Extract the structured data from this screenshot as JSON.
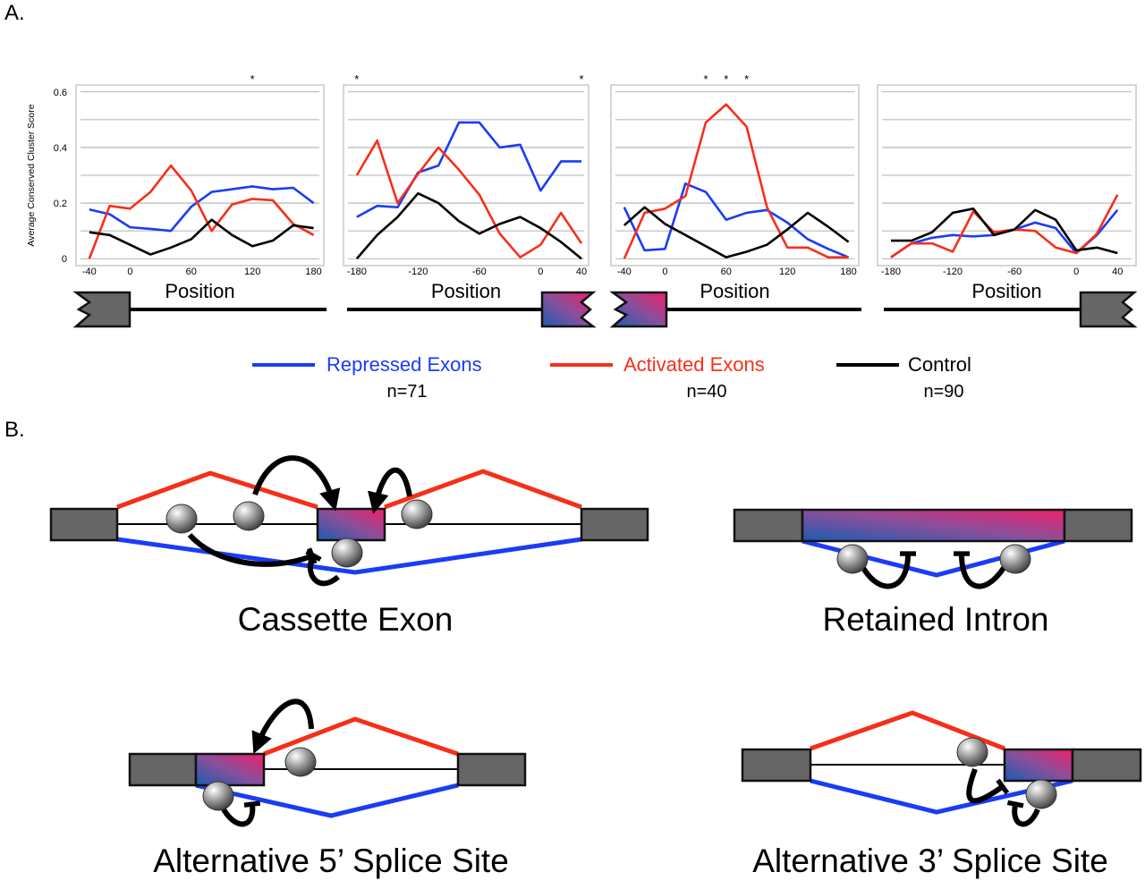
{
  "panel_labels": [
    "A.",
    "B."
  ],
  "chart_data": [
    {
      "type": "line",
      "x_label": "Position",
      "y_label": "Average Conserved Cluster Score",
      "x": [
        -40,
        -20,
        0,
        20,
        40,
        60,
        80,
        100,
        120,
        140,
        160,
        180
      ],
      "xlim": [
        -53,
        190
      ],
      "xticks": [
        -40,
        0,
        60,
        120,
        180
      ],
      "ylim": [
        -0.025,
        0.625
      ],
      "yticks": [
        0,
        {
          "value": 0.1,
          "label": null
        },
        0.2,
        {
          "value": 0.3,
          "label": null
        },
        0.4,
        {
          "value": 0.5,
          "label": null
        },
        0.6
      ],
      "ytick_labels": true,
      "grid": true,
      "annotations": [
        {
          "x": 120,
          "text": "*"
        }
      ],
      "series": [
        {
          "name": "Repressed Exons",
          "color": "#1a3cf5",
          "values": [
            0.177,
            0.16,
            0.113,
            0.107,
            0.1,
            0.187,
            0.24,
            0.25,
            0.26,
            0.25,
            0.255,
            0.2
          ]
        },
        {
          "name": "Activated Exons",
          "color": "#f5301a",
          "values": [
            0,
            0.19,
            0.18,
            0.24,
            0.335,
            0.245,
            0.1,
            0.195,
            0.215,
            0.21,
            0.125,
            0.085
          ]
        },
        {
          "name": "Control",
          "color": "#000000",
          "values": [
            0.095,
            0.085,
            0.05,
            0.015,
            0.04,
            0.07,
            0.14,
            0.085,
            0.045,
            0.065,
            0.12,
            0.11
          ]
        }
      ]
    },
    {
      "type": "line",
      "x_label": "Position",
      "x": [
        -180,
        -160,
        -140,
        -120,
        -100,
        -80,
        -60,
        -40,
        -20,
        0,
        20,
        40
      ],
      "xlim": [
        -193,
        47
      ],
      "xticks": [
        -180,
        -120,
        -60,
        0,
        40
      ],
      "ylim": [
        -0.025,
        0.625
      ],
      "yticks": [
        0,
        0.1,
        0.2,
        0.3,
        0.4,
        0.5,
        0.6
      ],
      "ytick_labels": false,
      "grid": true,
      "annotations": [
        {
          "x": -180,
          "text": "*"
        },
        {
          "x": 40,
          "text": "*"
        }
      ],
      "series": [
        {
          "color": "#1a3cf5",
          "values": [
            0.15,
            0.19,
            0.185,
            0.31,
            0.335,
            0.49,
            0.49,
            0.4,
            0.41,
            0.245,
            0.35,
            0.35
          ]
        },
        {
          "color": "#f5301a",
          "values": [
            0.3,
            0.425,
            0.2,
            0.305,
            0.4,
            0.32,
            0.23,
            0.09,
            0.005,
            0.05,
            0.165,
            0.055
          ]
        },
        {
          "color": "#000000",
          "values": [
            0,
            0.085,
            0.15,
            0.235,
            0.2,
            0.135,
            0.09,
            0.125,
            0.15,
            0.11,
            0.06,
            0
          ]
        }
      ]
    },
    {
      "type": "line",
      "x_label": "Position",
      "x": [
        -40,
        -20,
        0,
        20,
        40,
        60,
        80,
        100,
        120,
        140,
        160,
        180
      ],
      "xlim": [
        -53,
        190
      ],
      "xticks": [
        -40,
        0,
        60,
        120,
        180
      ],
      "ylim": [
        -0.025,
        0.625
      ],
      "yticks": [
        0,
        0.1,
        0.2,
        0.3,
        0.4,
        0.5,
        0.6
      ],
      "ytick_labels": false,
      "grid": true,
      "annotations": [
        {
          "x": 40,
          "text": "*"
        },
        {
          "x": 60,
          "text": "*"
        },
        {
          "x": 80,
          "text": "*"
        }
      ],
      "series": [
        {
          "color": "#1a3cf5",
          "values": [
            0.185,
            0.03,
            0.035,
            0.27,
            0.24,
            0.14,
            0.165,
            0.175,
            0.13,
            0.07,
            0.035,
            0.005
          ]
        },
        {
          "color": "#f5301a",
          "values": [
            0,
            0.165,
            0.18,
            0.225,
            0.49,
            0.555,
            0.475,
            0.185,
            0.04,
            0.04,
            0.005,
            0.005
          ]
        },
        {
          "color": "#000000",
          "values": [
            0.12,
            0.185,
            0.125,
            0.085,
            0.045,
            0.005,
            0.025,
            0.05,
            0.105,
            0.165,
            0.115,
            0.06
          ]
        }
      ]
    },
    {
      "type": "line",
      "x_label": "Position",
      "x": [
        -180,
        -160,
        -140,
        -120,
        -100,
        -80,
        -60,
        -40,
        -20,
        0,
        20,
        40
      ],
      "xlim": [
        -193,
        58
      ],
      "xticks": [
        -180,
        -120,
        -60,
        0,
        40
      ],
      "ylim": [
        -0.025,
        0.625
      ],
      "yticks": [
        0,
        0.1,
        0.2,
        0.3,
        0.4,
        0.5,
        0.6
      ],
      "ytick_labels": false,
      "grid": true,
      "annotations": [],
      "series": [
        {
          "color": "#1a3cf5",
          "values": [
            0.005,
            0.055,
            0.075,
            0.085,
            0.08,
            0.085,
            0.105,
            0.13,
            0.11,
            0.02,
            0.085,
            0.175
          ]
        },
        {
          "color": "#f5301a",
          "values": [
            0.005,
            0.055,
            0.055,
            0.025,
            0.17,
            0.095,
            0.105,
            0.1,
            0.04,
            0.02,
            0.09,
            0.23
          ]
        },
        {
          "color": "#000000",
          "values": [
            0.065,
            0.065,
            0.095,
            0.165,
            0.18,
            0.085,
            0.105,
            0.175,
            0.14,
            0.03,
            0.04,
            0.02
          ]
        }
      ]
    }
  ],
  "legend_counts": [
    "n=71",
    "n=40",
    "n=90"
  ],
  "diagrams": [
    {
      "label": "Cassette Exon"
    },
    {
      "label": "Retained Intron"
    },
    {
      "label": "Alternative 5’ Splice Site"
    },
    {
      "label": "Alternative 3’ Splice Site"
    }
  ]
}
